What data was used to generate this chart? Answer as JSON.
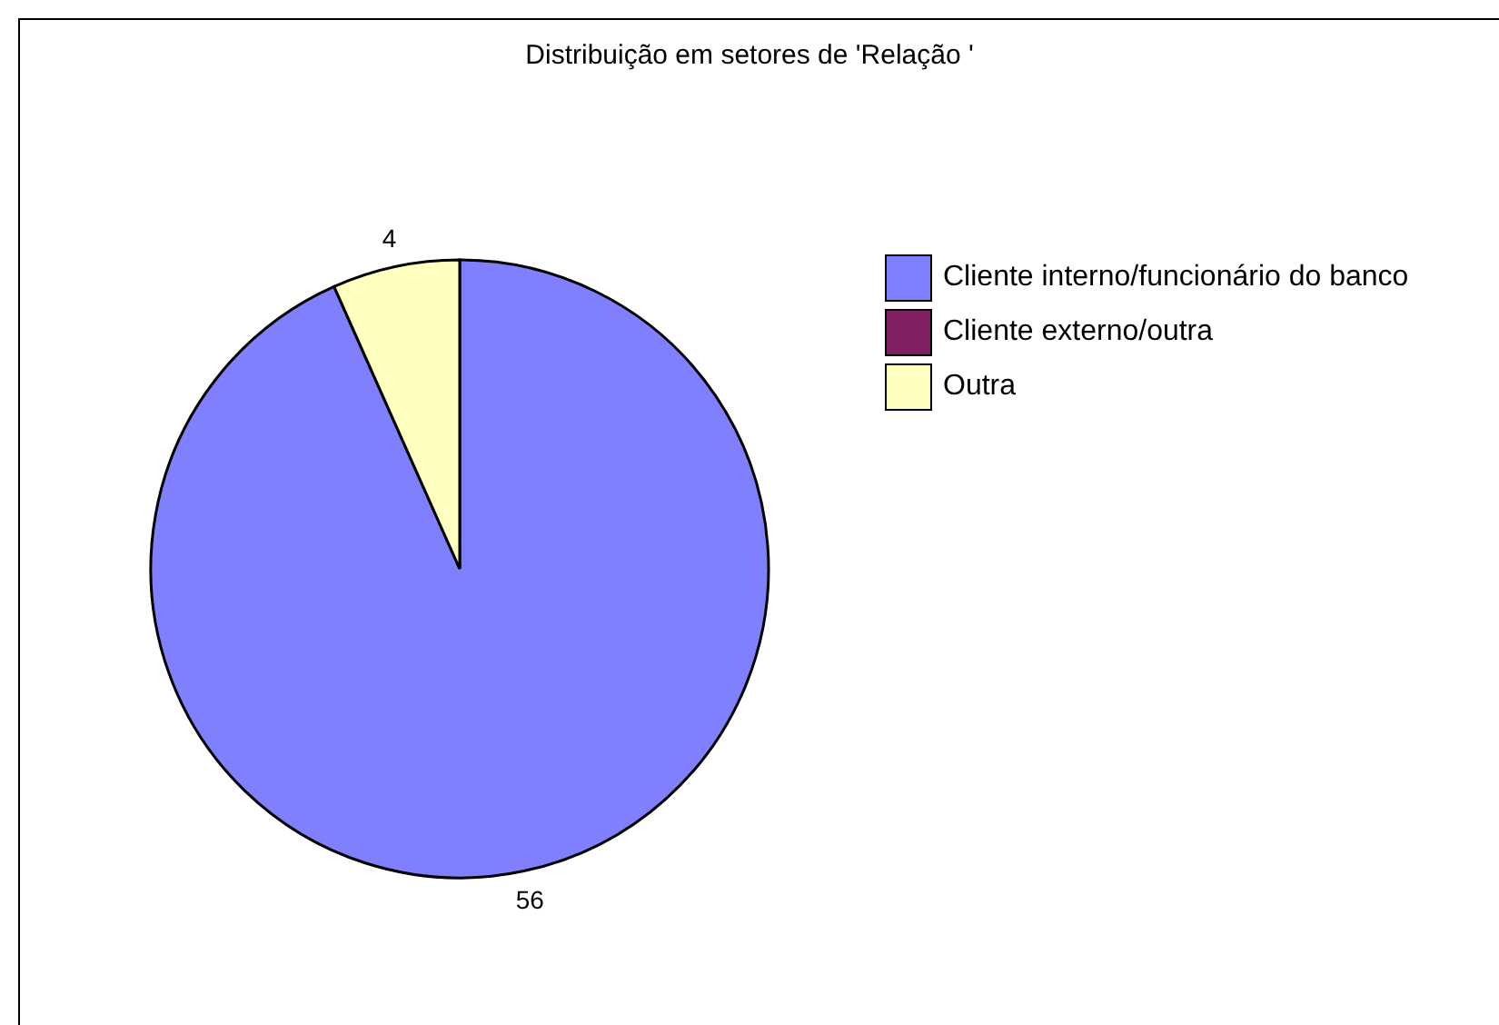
{
  "chart_data": {
    "type": "pie",
    "title": "Distribuição em setores de 'Relação '",
    "categories": [
      "Cliente interno/funcionário do banco",
      "Cliente externo/outra",
      "Outra"
    ],
    "values": [
      56,
      0,
      4
    ],
    "colors": [
      "#8080ff",
      "#802060",
      "#ffffc0"
    ],
    "value_labels": [
      "56",
      null,
      "4"
    ],
    "legend": "right"
  }
}
